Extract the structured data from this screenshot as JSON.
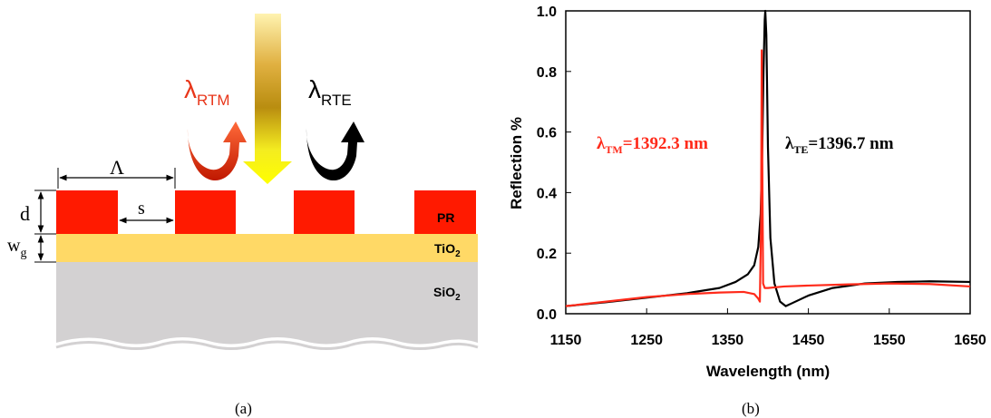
{
  "panel_a": {
    "caption": "(a)",
    "labels": {
      "lambda_rtm": "λ",
      "lambda_rtm_sub": "RTM",
      "lambda_rte": "λ",
      "lambda_rte_sub": "RTE",
      "period": "Λ",
      "gap": "s",
      "depth": "d",
      "waveguide": "w",
      "waveguide_sub": "g",
      "pr": "PR",
      "tio2": "TiO",
      "tio2_sub": "2",
      "sio2": "SiO",
      "sio2_sub": "2"
    },
    "colors": {
      "grating": "#ff1a00",
      "tio2": "#ffd966",
      "sio2": "#d3d1d2",
      "rtm_arrow": "#e8361a",
      "rte_arrow": "#000000"
    }
  },
  "panel_b": {
    "caption": "(b)",
    "annotations": {
      "tm_prefix": "λ",
      "tm_sub": "TM",
      "tm_value": "=1392.3 nm",
      "te_prefix": "λ",
      "te_sub": "TE",
      "te_value": "=1396.7 nm"
    }
  },
  "chart_data": {
    "type": "line",
    "xlabel": "Wavelength (nm)",
    "ylabel": "Reflection %",
    "xlim": [
      1150,
      1650
    ],
    "ylim": [
      0,
      1.0
    ],
    "xticks": [
      "1150",
      "1250",
      "1350",
      "1450",
      "1550",
      "1650"
    ],
    "yticks": [
      "0.0",
      "0.2",
      "0.4",
      "0.6",
      "0.8",
      "1.0"
    ],
    "grid": false,
    "series": [
      {
        "color": "#000000",
        "x": [
          1150,
          1200,
          1250,
          1300,
          1340,
          1360,
          1375,
          1383,
          1388,
          1391,
          1393,
          1394.5,
          1396,
          1396.7,
          1398,
          1400,
          1403,
          1408,
          1415,
          1422,
          1430,
          1450,
          1480,
          1520,
          1560,
          1600,
          1650
        ],
        "y": [
          0.025,
          0.038,
          0.053,
          0.068,
          0.085,
          0.105,
          0.13,
          0.16,
          0.22,
          0.33,
          0.55,
          0.8,
          0.97,
          1.0,
          0.92,
          0.55,
          0.25,
          0.1,
          0.04,
          0.025,
          0.035,
          0.06,
          0.085,
          0.1,
          0.105,
          0.107,
          0.105
        ]
      },
      {
        "color": "#ff2a1a",
        "x": [
          1150,
          1200,
          1250,
          1300,
          1340,
          1370,
          1383,
          1388,
          1390,
          1391.5,
          1392.3,
          1393,
          1394,
          1396,
          1400,
          1420,
          1450,
          1500,
          1550,
          1600,
          1650
        ],
        "y": [
          0.025,
          0.04,
          0.055,
          0.065,
          0.07,
          0.072,
          0.065,
          0.05,
          0.04,
          0.3,
          0.87,
          0.5,
          0.1,
          0.085,
          0.085,
          0.09,
          0.093,
          0.097,
          0.1,
          0.098,
          0.09
        ]
      }
    ]
  }
}
